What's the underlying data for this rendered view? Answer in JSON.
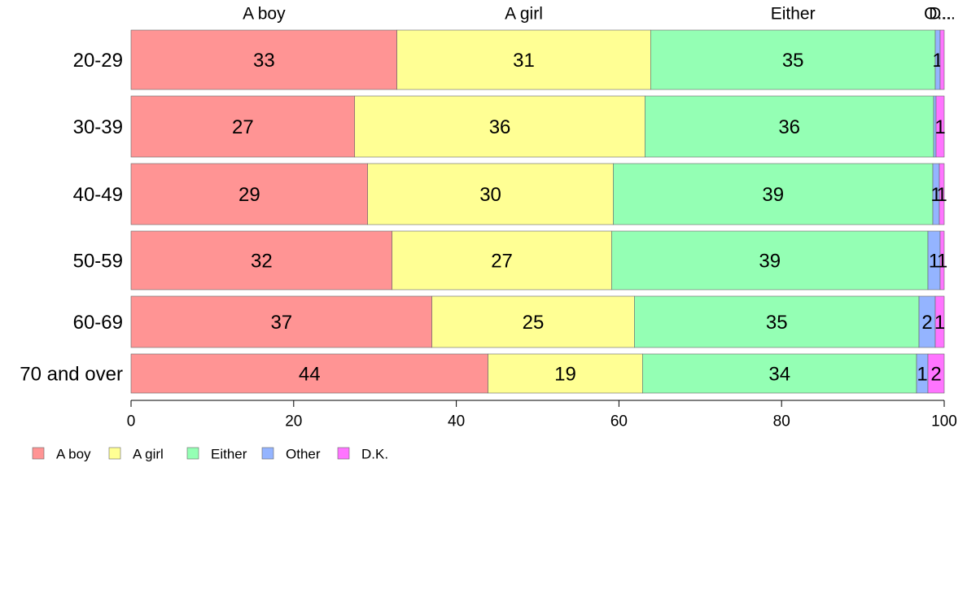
{
  "chart_data": {
    "type": "bar",
    "orientation": "horizontal",
    "stacked": true,
    "categories": [
      "20-29",
      "30-39",
      "40-49",
      "50-59",
      "60-69",
      "70 and over"
    ],
    "series": [
      {
        "name": "A boy",
        "color": "#ff9494",
        "values": [
          32.7,
          27.5,
          29.1,
          32.1,
          37.0,
          43.9
        ]
      },
      {
        "name": "A girl",
        "color": "#ffff94",
        "values": [
          31.2,
          35.7,
          30.2,
          27.0,
          24.9,
          19.0
        ]
      },
      {
        "name": "Either",
        "color": "#94ffb4",
        "values": [
          35.0,
          35.5,
          39.3,
          38.9,
          35.0,
          33.7
        ]
      },
      {
        "name": "Other",
        "color": "#94b4ff",
        "values": [
          0.6,
          0.3,
          0.8,
          1.5,
          2.0,
          1.4
        ]
      },
      {
        "name": "D.K.",
        "color": "#ff74ff",
        "values": [
          0.5,
          1.0,
          0.6,
          0.5,
          1.1,
          2.0
        ]
      }
    ],
    "data_labels": [
      [
        "33",
        "31",
        "35",
        "1",
        ""
      ],
      [
        "27",
        "36",
        "36",
        "",
        "1"
      ],
      [
        "29",
        "30",
        "39",
        "1",
        "1"
      ],
      [
        "32",
        "27",
        "39",
        "1",
        "1"
      ],
      [
        "37",
        "25",
        "35",
        "2",
        "1"
      ],
      [
        "44",
        "19",
        "34",
        "1",
        "2"
      ]
    ],
    "top_labels": [
      "A boy",
      "A girl",
      "Either",
      "O...",
      "D..."
    ],
    "xlim": [
      0,
      100
    ],
    "xticks": [
      "0",
      "20",
      "40",
      "60",
      "80",
      "100"
    ],
    "title": "",
    "xlabel": "",
    "ylabel": "",
    "legend": {
      "position": "bottom-left",
      "items": [
        "A boy",
        "A girl",
        "Either",
        "Other",
        "D.K."
      ]
    },
    "grid": false
  }
}
